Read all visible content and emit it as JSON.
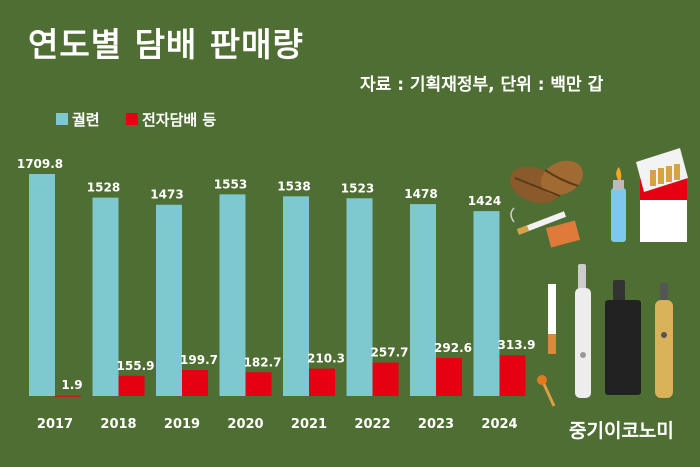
{
  "title": "연도별 담배 판매량",
  "source": "자료 : 기획재정부, 단위 : 백만 갑",
  "brand": "중기이코노미",
  "colors": {
    "background": "#4f6e33",
    "cigarette": "#7ec8cf",
    "e_cigarette": "#e50012",
    "text": "#ffffff"
  },
  "chart_data": {
    "type": "bar",
    "categories": [
      "2017",
      "2018",
      "2019",
      "2020",
      "2021",
      "2022",
      "2023",
      "2024"
    ],
    "series": [
      {
        "name": "궐련",
        "values": [
          1709.8,
          1528,
          1473,
          1553,
          1538,
          1523,
          1478,
          1424
        ],
        "labels": [
          "1709.8",
          "1528",
          "1473",
          "1553",
          "1538",
          "1523",
          "1478",
          "1424"
        ]
      },
      {
        "name": "전자담배 등",
        "values": [
          1.9,
          155.9,
          199.7,
          182.7,
          210.3,
          257.7,
          292.6,
          313.9
        ],
        "labels": [
          "1.9",
          "155.9",
          "199.7",
          "182.7",
          "210.3",
          "257.7",
          "292.6",
          "313.9"
        ]
      }
    ],
    "legend_position": "top-left",
    "grid": false
  }
}
